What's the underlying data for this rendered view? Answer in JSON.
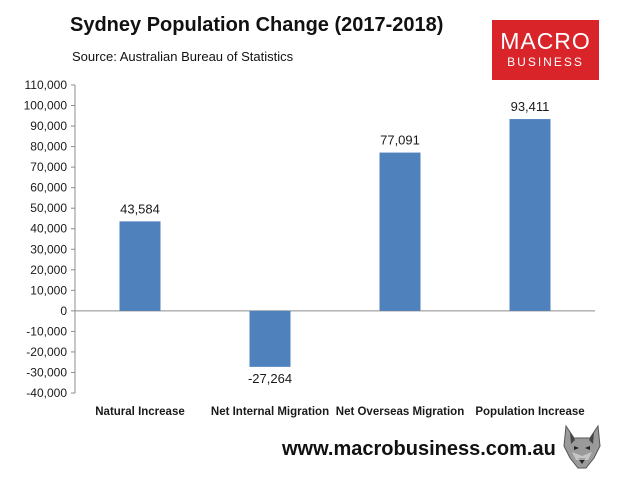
{
  "header": {
    "title": "Sydney Population Change (2017-2018)",
    "subtitle": "Source: Australian Bureau of Statistics"
  },
  "logo": {
    "line1": "MACRO",
    "line2": "BUSINESS",
    "color": "#d9252a"
  },
  "footer": {
    "website": "www.macrobusiness.com.au",
    "icon": "wolf-icon"
  },
  "colors": {
    "bar": "#4f81bd",
    "grid": "#d9d9d9"
  },
  "chart_data": {
    "type": "bar",
    "categories": [
      "Natural Increase",
      "Net Internal Migration",
      "Net Overseas Migration",
      "Population Increase"
    ],
    "values": [
      43584,
      -27264,
      77091,
      93411
    ],
    "data_labels": [
      "43,584",
      "-27,264",
      "77,091",
      "93,411"
    ],
    "ylim": [
      -40000,
      110000
    ],
    "yticks": [
      -40000,
      -30000,
      -20000,
      -10000,
      0,
      10000,
      20000,
      30000,
      40000,
      50000,
      60000,
      70000,
      80000,
      90000,
      100000,
      110000
    ],
    "ytick_labels": [
      "-40,000",
      "-30,000",
      "-20,000",
      "-10,000",
      "0",
      "10,000",
      "20,000",
      "30,000",
      "40,000",
      "50,000",
      "60,000",
      "70,000",
      "80,000",
      "90,000",
      "100,000",
      "110,000"
    ],
    "grid": false,
    "legend": "none"
  }
}
